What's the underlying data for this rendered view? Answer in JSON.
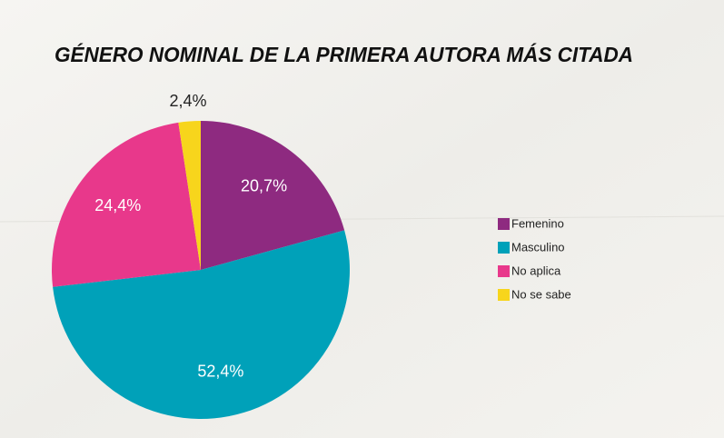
{
  "chart_data": {
    "type": "pie",
    "title": "GÉNERO NOMINAL DE LA PRIMERA AUTORA MÁS CITADA",
    "categories": [
      "Femenino",
      "Masculino",
      "No aplica",
      "No se sabe"
    ],
    "values": [
      20.7,
      52.4,
      24.4,
      2.4
    ],
    "value_labels": [
      "20,7%",
      "52,4%",
      "24,4%",
      "2,4%"
    ],
    "colors": [
      "#8e2a80",
      "#00a1b9",
      "#e8388b",
      "#f7d51c"
    ],
    "legend": "right"
  }
}
